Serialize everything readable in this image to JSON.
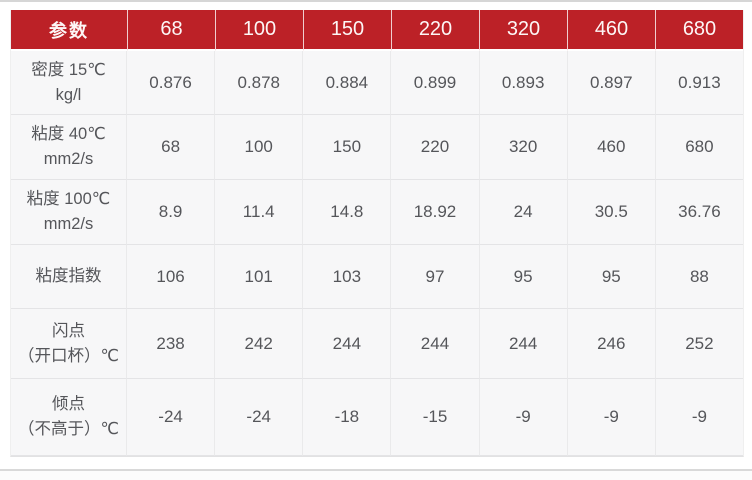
{
  "page": {
    "background": "#ffffff",
    "top_line_color": "#d6d6d6",
    "bottom_line_color": "#d9d9d9"
  },
  "table": {
    "accent_color": "#bc2127",
    "header_text_color": "#fdf6f6",
    "cell_background": "#f7f7f8",
    "body_text_color": "#55565a",
    "header": {
      "param_label": "参数",
      "grades": [
        "68",
        "100",
        "150",
        "220",
        "320",
        "460",
        "680"
      ]
    },
    "rows": [
      {
        "id": "density-15c",
        "label_line1": "密度 15℃",
        "label_line2": "kg/l",
        "values": [
          "0.876",
          "0.878",
          "0.884",
          "0.899",
          "0.893",
          "0.897",
          "0.913"
        ]
      },
      {
        "id": "viscosity-40c",
        "label_line1": "粘度 40℃",
        "label_line2": "mm2/s",
        "values": [
          "68",
          "100",
          "150",
          "220",
          "320",
          "460",
          "680"
        ]
      },
      {
        "id": "viscosity-100c",
        "label_line1": "粘度 100℃",
        "label_line2": "mm2/s",
        "values": [
          "8.9",
          "11.4",
          "14.8",
          "18.92",
          "24",
          "30.5",
          "36.76"
        ]
      },
      {
        "id": "viscosity-index",
        "label_line1": "粘度指数",
        "values": [
          "106",
          "101",
          "103",
          "97",
          "95",
          "95",
          "88"
        ]
      },
      {
        "id": "flash-point",
        "label_line1": "闪点",
        "label_line2": "（开口杯）℃",
        "values": [
          "238",
          "242",
          "244",
          "244",
          "244",
          "246",
          "252"
        ]
      },
      {
        "id": "pour-point",
        "label_line1": "倾点",
        "label_line2": "（不高于）℃",
        "values": [
          "-24",
          "-24",
          "-18",
          "-15",
          "-9",
          "-9",
          "-9"
        ]
      }
    ]
  }
}
